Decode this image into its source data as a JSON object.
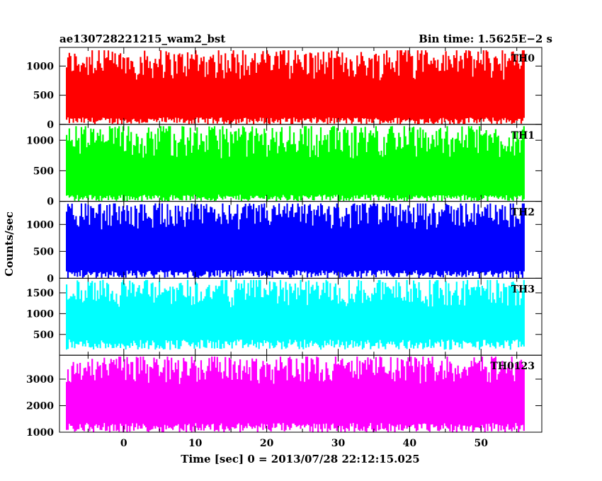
{
  "chart_data": {
    "type": "line",
    "title_left": "ae130728221215_wam2_bst",
    "title_right": "Bin time: 1.5625E−2 s",
    "xlabel": "Time [sec] 0 = 2013/07/28 22:12:15.025",
    "ylabel": "Counts/sec",
    "xlim": [
      -9,
      58.5
    ],
    "x_data_range": [
      -8,
      56
    ],
    "xticks": [
      0,
      10,
      20,
      30,
      40,
      50
    ],
    "grid": false,
    "panels": [
      {
        "name": "TH0",
        "color": "#ff0000",
        "ylim": [
          0,
          1320
        ],
        "yticks": [
          0,
          500,
          1000
        ],
        "band_low": [
          0,
          120
        ],
        "band_high": [
          750,
          1270
        ]
      },
      {
        "name": "TH1",
        "color": "#00ff00",
        "ylim": [
          0,
          1260
        ],
        "yticks": [
          0,
          500,
          1000
        ],
        "band_low": [
          0,
          110
        ],
        "band_high": [
          700,
          1230
        ]
      },
      {
        "name": "TH2",
        "color": "#0000ff",
        "ylim": [
          0,
          1430
        ],
        "yticks": [
          0,
          500,
          1000
        ],
        "band_low": [
          0,
          150
        ],
        "band_high": [
          900,
          1390
        ]
      },
      {
        "name": "TH3",
        "color": "#00ffff",
        "ylim": [
          0,
          1850
        ],
        "yticks": [
          500,
          1000,
          1500
        ],
        "band_low": [
          130,
          380
        ],
        "band_high": [
          1150,
          1810
        ]
      },
      {
        "name": "TH0123",
        "color": "#ff00ff",
        "ylim": [
          1000,
          3900
        ],
        "yticks": [
          1000,
          2000,
          3000
        ],
        "band_low": [
          1000,
          1350
        ],
        "band_high": [
          2800,
          3850
        ]
      }
    ]
  }
}
